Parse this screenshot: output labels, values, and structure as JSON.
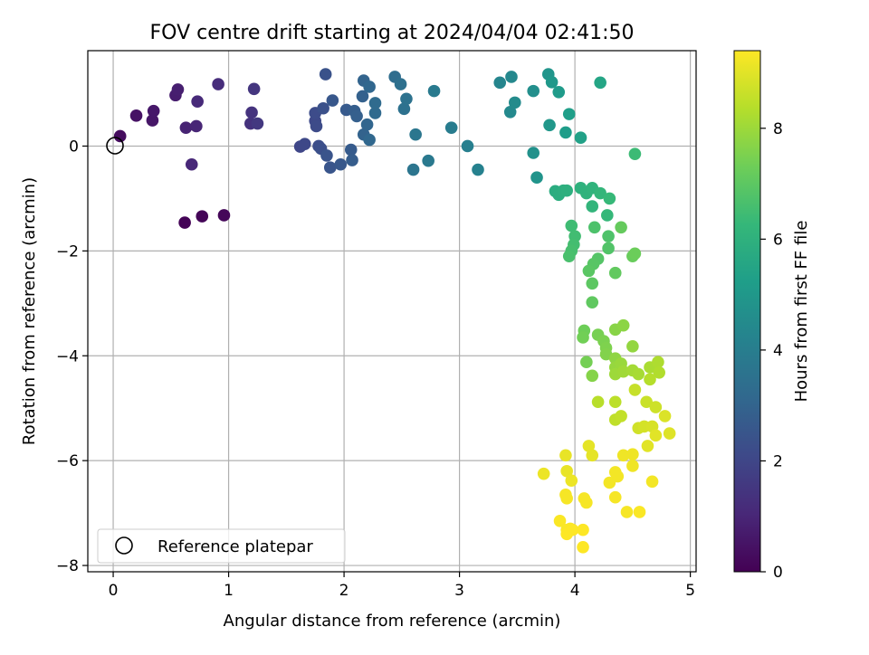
{
  "chart_data": {
    "type": "scatter",
    "title": "FOV centre drift starting at 2024/04/04 02:41:50",
    "xlabel": "Angular distance from reference (arcmin)",
    "ylabel": "Rotation from reference (arcmin)",
    "xlim": [
      -0.22,
      5.05
    ],
    "ylim": [
      -8.12,
      1.82
    ],
    "xticks": [
      0,
      1,
      2,
      3,
      4,
      5
    ],
    "xtick_labels": [
      "0",
      "1",
      "2",
      "3",
      "4",
      "5"
    ],
    "yticks": [
      0,
      -2,
      -4,
      -6,
      -8
    ],
    "ytick_labels": [
      "0",
      "−2",
      "−4",
      "−6",
      "−8"
    ],
    "grid": true,
    "legend": {
      "placement": "lower-left",
      "entries": [
        "Reference platepar"
      ]
    },
    "reference_point": {
      "x": 0,
      "y": 0,
      "marker": "open-circle",
      "color": "#000000"
    },
    "colorbar": {
      "label": "Hours from first FF file",
      "range": [
        0,
        9.4
      ],
      "ticks": [
        0,
        2,
        4,
        6,
        8
      ],
      "tick_labels": [
        "0",
        "2",
        "4",
        "6",
        "8"
      ],
      "colormap": "viridis",
      "stops": [
        "#440154",
        "#482878",
        "#3e4989",
        "#31688e",
        "#26828e",
        "#1f9e89",
        "#35b779",
        "#6ece58",
        "#b5de2b",
        "#fde725"
      ]
    },
    "points": [
      {
        "x": 0.62,
        "y": -1.46,
        "c": 0.05
      },
      {
        "x": 0.77,
        "y": -1.34,
        "c": 0.1
      },
      {
        "x": 0.96,
        "y": -1.32,
        "c": 0.15
      },
      {
        "x": 0.06,
        "y": 0.19,
        "c": 0.3
      },
      {
        "x": 0.2,
        "y": 0.58,
        "c": 0.45
      },
      {
        "x": 0.34,
        "y": 0.49,
        "c": 0.55
      },
      {
        "x": 0.35,
        "y": 0.67,
        "c": 0.6
      },
      {
        "x": 0.54,
        "y": 0.97,
        "c": 0.75
      },
      {
        "x": 0.56,
        "y": 1.08,
        "c": 0.8
      },
      {
        "x": 0.63,
        "y": 0.35,
        "c": 0.9
      },
      {
        "x": 0.72,
        "y": 0.38,
        "c": 1.0
      },
      {
        "x": 0.68,
        "y": -0.35,
        "c": 1.05
      },
      {
        "x": 0.73,
        "y": 0.85,
        "c": 1.1
      },
      {
        "x": 0.91,
        "y": 1.18,
        "c": 1.2
      },
      {
        "x": 1.19,
        "y": 0.43,
        "c": 1.35
      },
      {
        "x": 1.2,
        "y": 0.64,
        "c": 1.4
      },
      {
        "x": 1.22,
        "y": 1.09,
        "c": 1.5
      },
      {
        "x": 1.25,
        "y": 0.43,
        "c": 1.55
      },
      {
        "x": 1.62,
        "y": -0.01,
        "c": 2.0
      },
      {
        "x": 1.66,
        "y": 0.04,
        "c": 2.05
      },
      {
        "x": 1.75,
        "y": 0.48,
        "c": 2.1
      },
      {
        "x": 1.76,
        "y": 0.38,
        "c": 2.15
      },
      {
        "x": 1.75,
        "y": 0.63,
        "c": 2.2
      },
      {
        "x": 1.78,
        "y": 0.0,
        "c": 2.25
      },
      {
        "x": 1.8,
        "y": -0.05,
        "c": 2.3
      },
      {
        "x": 1.82,
        "y": 0.72,
        "c": 2.35
      },
      {
        "x": 1.84,
        "y": 1.37,
        "c": 2.4
      },
      {
        "x": 1.85,
        "y": -0.18,
        "c": 2.45
      },
      {
        "x": 1.88,
        "y": -0.41,
        "c": 2.5
      },
      {
        "x": 1.9,
        "y": 0.87,
        "c": 2.55
      },
      {
        "x": 1.97,
        "y": -0.35,
        "c": 2.6
      },
      {
        "x": 2.02,
        "y": 0.69,
        "c": 2.65
      },
      {
        "x": 2.06,
        "y": -0.07,
        "c": 2.7
      },
      {
        "x": 2.07,
        "y": -0.27,
        "c": 2.75
      },
      {
        "x": 2.09,
        "y": 0.67,
        "c": 2.8
      },
      {
        "x": 2.11,
        "y": 0.57,
        "c": 2.85
      },
      {
        "x": 2.16,
        "y": 0.95,
        "c": 2.9
      },
      {
        "x": 2.17,
        "y": 0.22,
        "c": 2.95
      },
      {
        "x": 2.17,
        "y": 1.25,
        "c": 3.0
      },
      {
        "x": 2.2,
        "y": 0.41,
        "c": 3.05
      },
      {
        "x": 2.22,
        "y": 1.13,
        "c": 3.1
      },
      {
        "x": 2.22,
        "y": 0.12,
        "c": 3.15
      },
      {
        "x": 2.27,
        "y": 0.63,
        "c": 3.2
      },
      {
        "x": 2.27,
        "y": 0.82,
        "c": 3.25
      },
      {
        "x": 2.44,
        "y": 1.32,
        "c": 3.35
      },
      {
        "x": 2.49,
        "y": 1.18,
        "c": 3.45
      },
      {
        "x": 2.52,
        "y": 0.71,
        "c": 3.5
      },
      {
        "x": 2.54,
        "y": 0.9,
        "c": 3.55
      },
      {
        "x": 2.6,
        "y": -0.45,
        "c": 3.65
      },
      {
        "x": 2.62,
        "y": 0.22,
        "c": 3.7
      },
      {
        "x": 2.73,
        "y": -0.28,
        "c": 3.8
      },
      {
        "x": 2.78,
        "y": 1.05,
        "c": 3.85
      },
      {
        "x": 2.93,
        "y": 0.35,
        "c": 3.95
      },
      {
        "x": 3.07,
        "y": 0.0,
        "c": 4.05
      },
      {
        "x": 3.16,
        "y": -0.45,
        "c": 4.15
      },
      {
        "x": 3.35,
        "y": 1.21,
        "c": 4.3
      },
      {
        "x": 3.45,
        "y": 1.32,
        "c": 4.4
      },
      {
        "x": 3.44,
        "y": 0.65,
        "c": 4.45
      },
      {
        "x": 3.48,
        "y": 0.83,
        "c": 4.5
      },
      {
        "x": 3.64,
        "y": 1.05,
        "c": 4.65
      },
      {
        "x": 3.64,
        "y": -0.13,
        "c": 4.75
      },
      {
        "x": 3.67,
        "y": -0.6,
        "c": 4.85
      },
      {
        "x": 3.77,
        "y": 1.37,
        "c": 4.9
      },
      {
        "x": 3.78,
        "y": 0.4,
        "c": 4.95
      },
      {
        "x": 3.8,
        "y": 1.22,
        "c": 5.0
      },
      {
        "x": 3.86,
        "y": 1.03,
        "c": 5.1
      },
      {
        "x": 3.92,
        "y": 0.26,
        "c": 5.2
      },
      {
        "x": 3.95,
        "y": 0.61,
        "c": 5.25
      },
      {
        "x": 4.05,
        "y": 0.16,
        "c": 5.35
      },
      {
        "x": 4.22,
        "y": 1.21,
        "c": 5.5
      },
      {
        "x": 3.83,
        "y": -0.86,
        "c": 5.8
      },
      {
        "x": 3.86,
        "y": -0.93,
        "c": 5.85
      },
      {
        "x": 3.9,
        "y": -0.85,
        "c": 5.9
      },
      {
        "x": 3.93,
        "y": -0.85,
        "c": 5.95
      },
      {
        "x": 4.05,
        "y": -0.8,
        "c": 6.0
      },
      {
        "x": 4.1,
        "y": -0.9,
        "c": 6.05
      },
      {
        "x": 4.15,
        "y": -0.8,
        "c": 6.1
      },
      {
        "x": 4.15,
        "y": -1.15,
        "c": 6.15
      },
      {
        "x": 4.22,
        "y": -0.9,
        "c": 6.2
      },
      {
        "x": 4.28,
        "y": -1.32,
        "c": 6.25
      },
      {
        "x": 4.3,
        "y": -1.0,
        "c": 6.3
      },
      {
        "x": 4.52,
        "y": -0.15,
        "c": 6.4
      },
      {
        "x": 3.97,
        "y": -1.52,
        "c": 6.45
      },
      {
        "x": 4.0,
        "y": -1.72,
        "c": 6.5
      },
      {
        "x": 3.99,
        "y": -1.88,
        "c": 6.55
      },
      {
        "x": 3.97,
        "y": -2.0,
        "c": 6.6
      },
      {
        "x": 3.95,
        "y": -2.1,
        "c": 6.65
      },
      {
        "x": 4.17,
        "y": -1.55,
        "c": 6.7
      },
      {
        "x": 4.29,
        "y": -1.72,
        "c": 6.75
      },
      {
        "x": 4.29,
        "y": -1.95,
        "c": 6.8
      },
      {
        "x": 4.2,
        "y": -2.15,
        "c": 6.85
      },
      {
        "x": 4.16,
        "y": -2.25,
        "c": 6.9
      },
      {
        "x": 4.12,
        "y": -2.38,
        "c": 6.95
      },
      {
        "x": 4.15,
        "y": -2.62,
        "c": 7.0
      },
      {
        "x": 4.15,
        "y": -2.98,
        "c": 7.05
      },
      {
        "x": 4.35,
        "y": -2.42,
        "c": 7.1
      },
      {
        "x": 4.4,
        "y": -1.55,
        "c": 7.15
      },
      {
        "x": 4.5,
        "y": -2.1,
        "c": 7.2
      },
      {
        "x": 4.52,
        "y": -2.05,
        "c": 7.25
      },
      {
        "x": 4.08,
        "y": -3.52,
        "c": 7.3
      },
      {
        "x": 4.07,
        "y": -3.65,
        "c": 7.35
      },
      {
        "x": 4.1,
        "y": -4.12,
        "c": 7.4
      },
      {
        "x": 4.2,
        "y": -3.6,
        "c": 7.45
      },
      {
        "x": 4.25,
        "y": -3.72,
        "c": 7.5
      },
      {
        "x": 4.27,
        "y": -3.85,
        "c": 7.55
      },
      {
        "x": 4.27,
        "y": -3.97,
        "c": 7.6
      },
      {
        "x": 4.15,
        "y": -4.38,
        "c": 7.65
      },
      {
        "x": 4.35,
        "y": -3.5,
        "c": 7.7
      },
      {
        "x": 4.42,
        "y": -3.42,
        "c": 7.75
      },
      {
        "x": 4.35,
        "y": -4.05,
        "c": 7.8
      },
      {
        "x": 4.5,
        "y": -3.82,
        "c": 7.85
      },
      {
        "x": 4.35,
        "y": -4.22,
        "c": 7.9
      },
      {
        "x": 4.4,
        "y": -4.15,
        "c": 7.95
      },
      {
        "x": 4.35,
        "y": -4.35,
        "c": 8.0
      },
      {
        "x": 4.42,
        "y": -4.3,
        "c": 8.05
      },
      {
        "x": 4.5,
        "y": -4.28,
        "c": 8.1
      },
      {
        "x": 4.55,
        "y": -4.35,
        "c": 8.15
      },
      {
        "x": 4.65,
        "y": -4.22,
        "c": 8.2
      },
      {
        "x": 4.72,
        "y": -4.12,
        "c": 8.25
      },
      {
        "x": 4.73,
        "y": -4.32,
        "c": 8.3
      },
      {
        "x": 4.65,
        "y": -4.45,
        "c": 8.35
      },
      {
        "x": 4.2,
        "y": -4.88,
        "c": 8.4
      },
      {
        "x": 4.35,
        "y": -4.88,
        "c": 8.45
      },
      {
        "x": 4.35,
        "y": -5.22,
        "c": 8.5
      },
      {
        "x": 4.4,
        "y": -5.15,
        "c": 8.55
      },
      {
        "x": 4.52,
        "y": -4.65,
        "c": 8.6
      },
      {
        "x": 4.62,
        "y": -4.88,
        "c": 8.65
      },
      {
        "x": 4.7,
        "y": -4.98,
        "c": 8.7
      },
      {
        "x": 4.55,
        "y": -5.38,
        "c": 8.75
      },
      {
        "x": 4.6,
        "y": -5.35,
        "c": 8.8
      },
      {
        "x": 4.67,
        "y": -5.35,
        "c": 8.85
      },
      {
        "x": 4.78,
        "y": -5.15,
        "c": 8.9
      },
      {
        "x": 4.82,
        "y": -5.48,
        "c": 8.95
      },
      {
        "x": 4.7,
        "y": -5.52,
        "c": 9.0
      },
      {
        "x": 4.63,
        "y": -5.72,
        "c": 9.0
      },
      {
        "x": 4.12,
        "y": -5.72,
        "c": 9.05
      },
      {
        "x": 4.15,
        "y": -5.9,
        "c": 9.05
      },
      {
        "x": 3.92,
        "y": -5.9,
        "c": 9.1
      },
      {
        "x": 3.93,
        "y": -6.2,
        "c": 9.1
      },
      {
        "x": 3.73,
        "y": -6.25,
        "c": 9.15
      },
      {
        "x": 3.97,
        "y": -6.38,
        "c": 9.15
      },
      {
        "x": 4.42,
        "y": -5.9,
        "c": 9.2
      },
      {
        "x": 4.5,
        "y": -5.88,
        "c": 9.2
      },
      {
        "x": 4.5,
        "y": -6.1,
        "c": 9.2
      },
      {
        "x": 4.35,
        "y": -6.22,
        "c": 9.25
      },
      {
        "x": 4.37,
        "y": -6.3,
        "c": 9.25
      },
      {
        "x": 4.3,
        "y": -6.42,
        "c": 9.25
      },
      {
        "x": 4.67,
        "y": -6.4,
        "c": 9.25
      },
      {
        "x": 3.92,
        "y": -6.65,
        "c": 9.3
      },
      {
        "x": 3.93,
        "y": -6.72,
        "c": 9.3
      },
      {
        "x": 4.08,
        "y": -6.72,
        "c": 9.3
      },
      {
        "x": 4.1,
        "y": -6.8,
        "c": 9.3
      },
      {
        "x": 4.35,
        "y": -6.7,
        "c": 9.3
      },
      {
        "x": 4.45,
        "y": -6.98,
        "c": 9.3
      },
      {
        "x": 4.56,
        "y": -6.98,
        "c": 9.35
      },
      {
        "x": 3.87,
        "y": -7.15,
        "c": 9.35
      },
      {
        "x": 3.93,
        "y": -7.32,
        "c": 9.35
      },
      {
        "x": 3.96,
        "y": -7.3,
        "c": 9.35
      },
      {
        "x": 3.93,
        "y": -7.4,
        "c": 9.4
      },
      {
        "x": 3.98,
        "y": -7.32,
        "c": 9.4
      },
      {
        "x": 4.07,
        "y": -7.32,
        "c": 9.4
      },
      {
        "x": 4.07,
        "y": -7.65,
        "c": 9.4
      }
    ]
  }
}
